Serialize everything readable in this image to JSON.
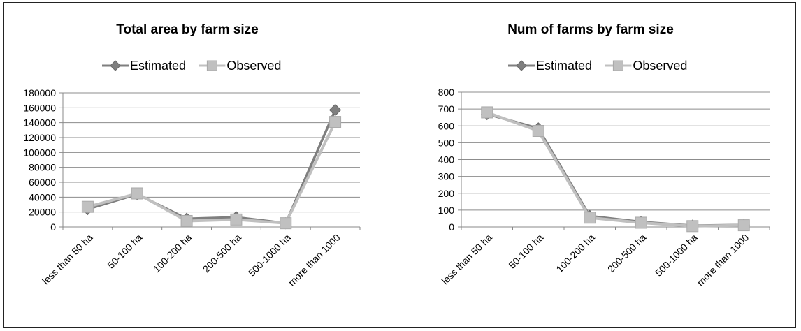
{
  "chart_data": [
    {
      "type": "line",
      "title": "Total area by farm size",
      "legend_position": "top",
      "categories": [
        "less than 50 ha",
        "50-100 ha",
        "100-200 ha",
        "200-500 ha",
        "500-1000 ha",
        "more than 1000"
      ],
      "series": [
        {
          "name": "Estimated",
          "values": [
            24000,
            44000,
            11000,
            13000,
            5000,
            157000
          ],
          "color": "#7f7f7f",
          "marker": "diamond"
        },
        {
          "name": "Observed",
          "values": [
            27000,
            45000,
            8000,
            10000,
            5000,
            141000
          ],
          "color": "#c0c0c0",
          "marker": "square"
        }
      ],
      "yticks": [
        "0",
        "20000",
        "40000",
        "60000",
        "80000",
        "100000",
        "120000",
        "140000",
        "160000",
        "180000"
      ],
      "ylim": [
        0,
        180000
      ],
      "grid": true
    },
    {
      "type": "line",
      "title": "Num of farms by farm size",
      "legend_position": "top",
      "categories": [
        "less than 50 ha",
        "50-100 ha",
        "100-200 ha",
        "200-500 ha",
        "500-1000 ha",
        "more than 1000"
      ],
      "series": [
        {
          "name": "Estimated",
          "values": [
            670,
            585,
            65,
            30,
            8,
            12
          ],
          "color": "#7f7f7f",
          "marker": "diamond"
        },
        {
          "name": "Observed",
          "values": [
            680,
            570,
            55,
            25,
            5,
            10
          ],
          "color": "#c0c0c0",
          "marker": "square"
        }
      ],
      "yticks": [
        "0",
        "100",
        "200",
        "300",
        "400",
        "500",
        "600",
        "700",
        "800"
      ],
      "ylim": [
        0,
        800
      ],
      "grid": true
    }
  ]
}
